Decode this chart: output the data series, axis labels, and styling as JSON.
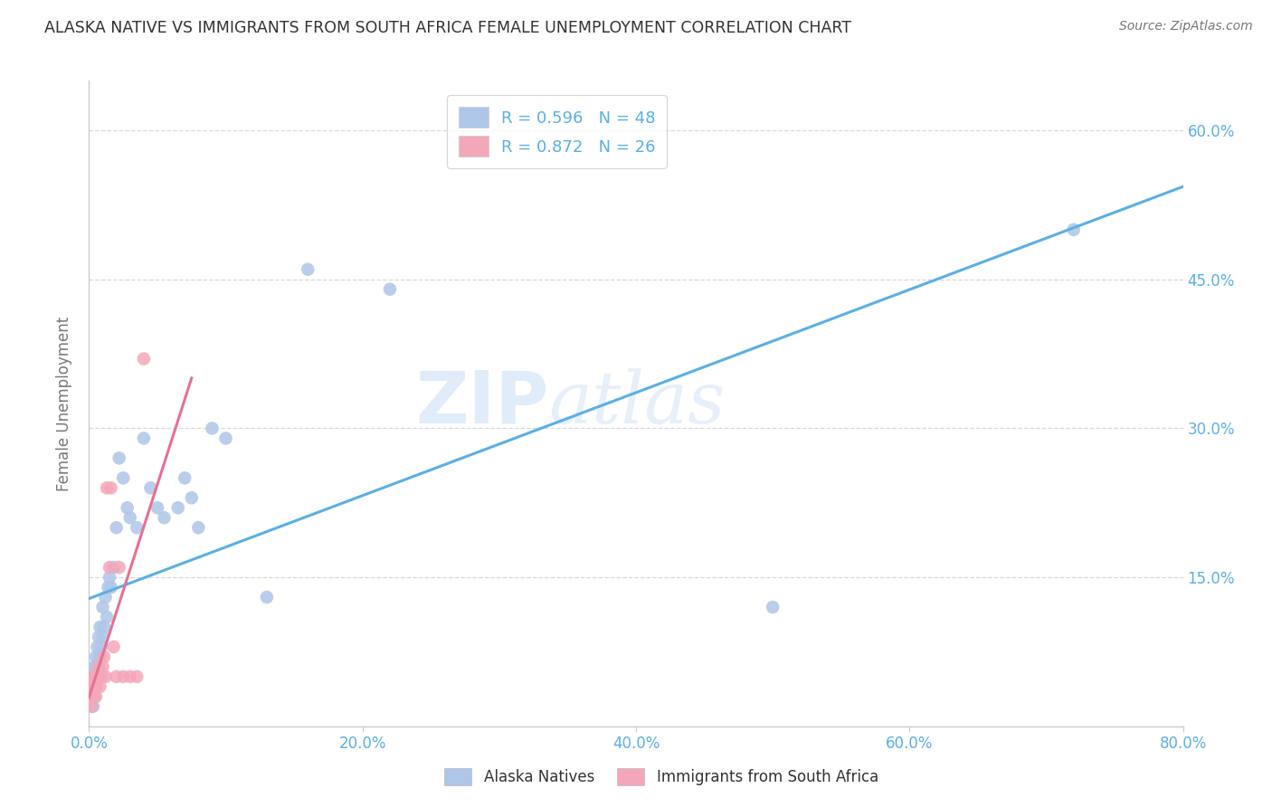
{
  "title": "ALASKA NATIVE VS IMMIGRANTS FROM SOUTH AFRICA FEMALE UNEMPLOYMENT CORRELATION CHART",
  "source": "Source: ZipAtlas.com",
  "ylabel": "Female Unemployment",
  "legend_entries": [
    {
      "label": "Alaska Natives",
      "R": 0.596,
      "N": 48,
      "color": "#aec6e8"
    },
    {
      "label": "Immigrants from South Africa",
      "R": 0.872,
      "N": 26,
      "color": "#f4a7b9"
    }
  ],
  "watermark": "ZIPatlas",
  "blue_line_color": "#5aafe8",
  "pink_line_color": "#e87090",
  "alaska_scatter_color": "#aec6e8",
  "sa_scatter_color": "#f4a7b9",
  "alaska_points_x": [
    0.002,
    0.002,
    0.003,
    0.003,
    0.003,
    0.004,
    0.004,
    0.004,
    0.005,
    0.005,
    0.005,
    0.006,
    0.006,
    0.007,
    0.007,
    0.008,
    0.008,
    0.009,
    0.01,
    0.01,
    0.011,
    0.012,
    0.013,
    0.014,
    0.015,
    0.016,
    0.018,
    0.02,
    0.022,
    0.025,
    0.028,
    0.03,
    0.035,
    0.04,
    0.045,
    0.05,
    0.055,
    0.065,
    0.07,
    0.075,
    0.08,
    0.09,
    0.1,
    0.13,
    0.16,
    0.22,
    0.5,
    0.72
  ],
  "alaska_points_y": [
    0.03,
    0.04,
    0.02,
    0.04,
    0.05,
    0.03,
    0.05,
    0.06,
    0.04,
    0.06,
    0.07,
    0.05,
    0.08,
    0.06,
    0.09,
    0.07,
    0.1,
    0.08,
    0.09,
    0.12,
    0.1,
    0.13,
    0.11,
    0.14,
    0.15,
    0.14,
    0.16,
    0.2,
    0.27,
    0.25,
    0.22,
    0.21,
    0.2,
    0.29,
    0.24,
    0.22,
    0.21,
    0.22,
    0.25,
    0.23,
    0.2,
    0.3,
    0.29,
    0.13,
    0.46,
    0.44,
    0.12,
    0.5
  ],
  "sa_points_x": [
    0.001,
    0.002,
    0.002,
    0.003,
    0.003,
    0.004,
    0.004,
    0.005,
    0.005,
    0.006,
    0.007,
    0.008,
    0.009,
    0.01,
    0.011,
    0.012,
    0.013,
    0.015,
    0.016,
    0.018,
    0.02,
    0.022,
    0.025,
    0.03,
    0.035,
    0.04
  ],
  "sa_points_y": [
    0.03,
    0.02,
    0.04,
    0.03,
    0.05,
    0.04,
    0.05,
    0.03,
    0.04,
    0.05,
    0.06,
    0.04,
    0.05,
    0.06,
    0.07,
    0.05,
    0.24,
    0.16,
    0.24,
    0.08,
    0.05,
    0.16,
    0.05,
    0.05,
    0.05,
    0.37
  ],
  "xlim": [
    0.0,
    0.8
  ],
  "ylim": [
    0.0,
    0.65
  ],
  "xtick_vals": [
    0.0,
    0.2,
    0.4,
    0.6,
    0.8
  ],
  "xtick_labels": [
    "0.0%",
    "20.0%",
    "40.0%",
    "60.0%",
    "80.0%"
  ],
  "ytick_vals": [
    0.15,
    0.3,
    0.45,
    0.6
  ],
  "ytick_labels": [
    "15.0%",
    "30.0%",
    "45.0%",
    "60.0%"
  ],
  "blue_line_x": [
    0.0,
    0.8
  ],
  "pink_line_x": [
    0.0,
    0.075
  ],
  "figsize": [
    14.06,
    8.92
  ],
  "dpi": 100,
  "background_color": "#ffffff",
  "grid_color": "#d8d8d8",
  "title_color": "#333333",
  "axis_label_color": "#777777",
  "tick_label_color": "#5aafe8",
  "source_color": "#777777"
}
